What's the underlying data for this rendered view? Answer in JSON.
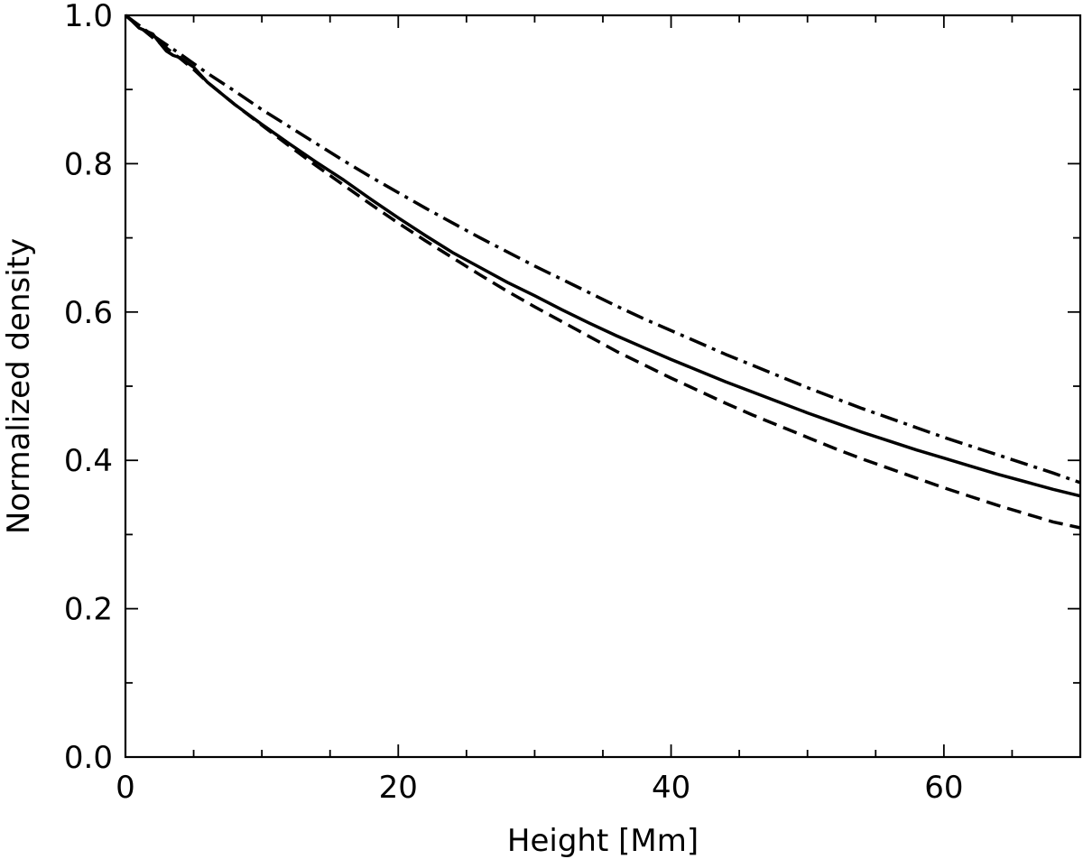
{
  "chart_data": {
    "type": "line",
    "title": "",
    "xlabel": "Height [Mm]",
    "ylabel": "Normalized density",
    "xlim": [
      0,
      70
    ],
    "ylim": [
      0,
      1.0
    ],
    "x_major_ticks": [
      0,
      20,
      40,
      60
    ],
    "x_tick_labels": [
      "0",
      "20",
      "40",
      "60"
    ],
    "x_minor_ticks": [
      5,
      10,
      15,
      25,
      30,
      35,
      45,
      50,
      55,
      65
    ],
    "y_major_ticks": [
      0,
      0.2,
      0.4,
      0.6,
      0.8,
      1.0
    ],
    "y_tick_labels": [
      "0.0",
      "0.2",
      "0.4",
      "0.6",
      "0.8",
      "1.0"
    ],
    "y_minor_ticks": [
      0.1,
      0.3,
      0.5,
      0.7,
      0.9
    ],
    "grid": false,
    "legend": "none",
    "series": [
      {
        "style": "solid",
        "color": "#000000",
        "points": [
          [
            0,
            1.0
          ],
          [
            0.5,
            0.992
          ],
          [
            1,
            0.983
          ],
          [
            1.5,
            0.979
          ],
          [
            2,
            0.975
          ],
          [
            2.5,
            0.963
          ],
          [
            3,
            0.952
          ],
          [
            3.5,
            0.946
          ],
          [
            4,
            0.943
          ],
          [
            5,
            0.93
          ],
          [
            6,
            0.91
          ],
          [
            8,
            0.88
          ],
          [
            10,
            0.853
          ],
          [
            12,
            0.827
          ],
          [
            14,
            0.802
          ],
          [
            16,
            0.778
          ],
          [
            18,
            0.752
          ],
          [
            20,
            0.727
          ],
          [
            22,
            0.703
          ],
          [
            24,
            0.68
          ],
          [
            26,
            0.66
          ],
          [
            28,
            0.64
          ],
          [
            30,
            0.622
          ],
          [
            32,
            0.603
          ],
          [
            34,
            0.585
          ],
          [
            36,
            0.568
          ],
          [
            38,
            0.552
          ],
          [
            40,
            0.536
          ],
          [
            42,
            0.521
          ],
          [
            44,
            0.506
          ],
          [
            46,
            0.492
          ],
          [
            48,
            0.478
          ],
          [
            50,
            0.464
          ],
          [
            52,
            0.451
          ],
          [
            54,
            0.438
          ],
          [
            56,
            0.426
          ],
          [
            58,
            0.414
          ],
          [
            60,
            0.403
          ],
          [
            62,
            0.392
          ],
          [
            64,
            0.381
          ],
          [
            66,
            0.371
          ],
          [
            68,
            0.361
          ],
          [
            70,
            0.352
          ]
        ]
      },
      {
        "style": "dashed",
        "color": "#000000",
        "points": [
          [
            0,
            1.0
          ],
          [
            0.5,
            0.993
          ],
          [
            1,
            0.985
          ],
          [
            2,
            0.97
          ],
          [
            3,
            0.956
          ],
          [
            4,
            0.942
          ],
          [
            5,
            0.927
          ],
          [
            6,
            0.91
          ],
          [
            8,
            0.88
          ],
          [
            10,
            0.852
          ],
          [
            12,
            0.824
          ],
          [
            14,
            0.797
          ],
          [
            16,
            0.771
          ],
          [
            18,
            0.745
          ],
          [
            20,
            0.72
          ],
          [
            22,
            0.696
          ],
          [
            24,
            0.673
          ],
          [
            26,
            0.65
          ],
          [
            28,
            0.628
          ],
          [
            30,
            0.607
          ],
          [
            32,
            0.587
          ],
          [
            34,
            0.567
          ],
          [
            36,
            0.547
          ],
          [
            38,
            0.529
          ],
          [
            40,
            0.511
          ],
          [
            42,
            0.494
          ],
          [
            44,
            0.477
          ],
          [
            46,
            0.461
          ],
          [
            48,
            0.446
          ],
          [
            50,
            0.431
          ],
          [
            52,
            0.416
          ],
          [
            54,
            0.402
          ],
          [
            56,
            0.389
          ],
          [
            58,
            0.376
          ],
          [
            60,
            0.363
          ],
          [
            62,
            0.351
          ],
          [
            64,
            0.339
          ],
          [
            66,
            0.328
          ],
          [
            68,
            0.317
          ],
          [
            70,
            0.309
          ]
        ]
      },
      {
        "style": "dashdot",
        "color": "#000000",
        "points": [
          [
            0,
            1.0
          ],
          [
            2,
            0.973
          ],
          [
            4,
            0.948
          ],
          [
            6,
            0.922
          ],
          [
            8,
            0.898
          ],
          [
            10,
            0.873
          ],
          [
            12,
            0.85
          ],
          [
            14,
            0.827
          ],
          [
            16,
            0.804
          ],
          [
            18,
            0.782
          ],
          [
            20,
            0.761
          ],
          [
            22,
            0.74
          ],
          [
            24,
            0.72
          ],
          [
            26,
            0.7
          ],
          [
            28,
            0.681
          ],
          [
            30,
            0.662
          ],
          [
            32,
            0.644
          ],
          [
            34,
            0.626
          ],
          [
            36,
            0.608
          ],
          [
            38,
            0.591
          ],
          [
            40,
            0.575
          ],
          [
            42,
            0.559
          ],
          [
            44,
            0.543
          ],
          [
            46,
            0.528
          ],
          [
            48,
            0.513
          ],
          [
            50,
            0.498
          ],
          [
            52,
            0.484
          ],
          [
            54,
            0.47
          ],
          [
            56,
            0.457
          ],
          [
            58,
            0.444
          ],
          [
            60,
            0.431
          ],
          [
            62,
            0.419
          ],
          [
            64,
            0.407
          ],
          [
            66,
            0.395
          ],
          [
            68,
            0.383
          ],
          [
            70,
            0.37
          ]
        ]
      }
    ]
  }
}
